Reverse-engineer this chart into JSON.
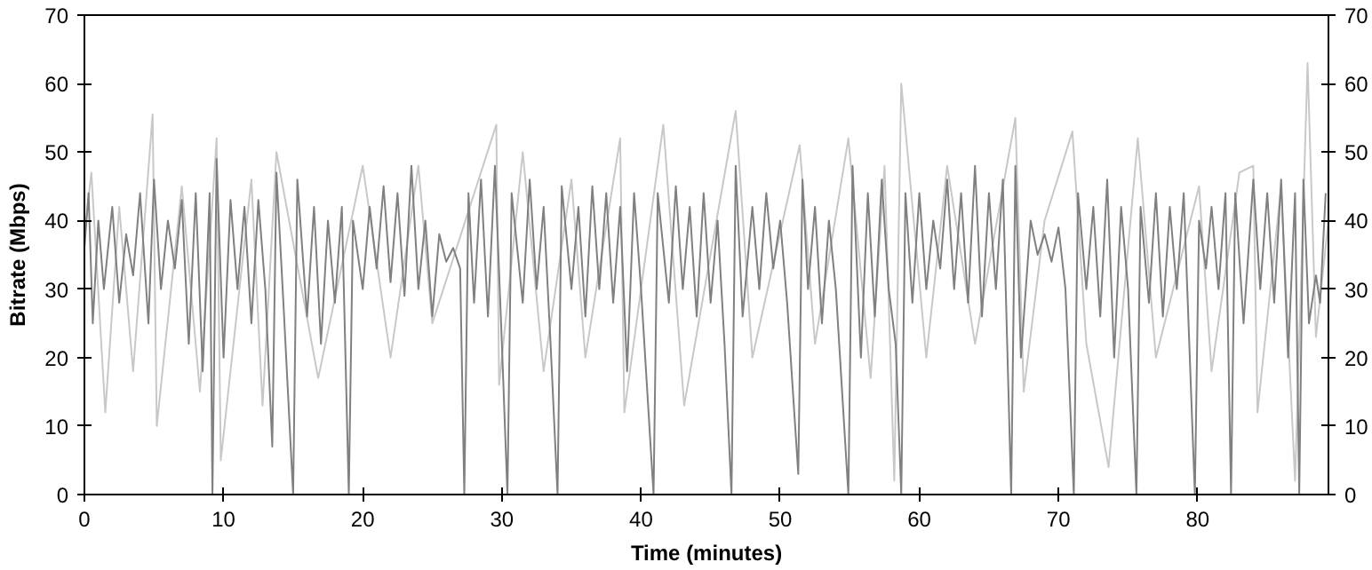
{
  "chart_data": {
    "type": "line",
    "xlabel": "Time (minutes)",
    "ylabel": "Bitrate (Mbps)",
    "xlim": [
      0,
      89.4
    ],
    "xticks": [
      0,
      10,
      20,
      30,
      40,
      50,
      60,
      70,
      80
    ],
    "ylim": [
      0,
      70
    ],
    "yticks": [
      0,
      10,
      20,
      30,
      40,
      50,
      60,
      70
    ],
    "y2lim": [
      0,
      70
    ],
    "y2ticks": [
      0,
      10,
      20,
      30,
      40,
      50,
      60,
      70
    ],
    "grid": false,
    "marker": "none",
    "line_style": "solid",
    "series": [
      {
        "color": "#c8c8c8",
        "x": [
          0,
          0.5,
          1.5,
          2.5,
          3.5,
          4.9,
          5.2,
          7,
          8.3,
          9.5,
          9.8,
          12,
          12.8,
          13.8,
          16.8,
          20,
          22,
          24,
          25,
          29.6,
          29.8,
          31.5,
          33,
          35,
          36,
          38.5,
          38.8,
          41.6,
          43.1,
          46.8,
          48,
          51.4,
          52.5,
          54.9,
          56.5,
          57.5,
          58.2,
          58.7,
          60.5,
          62,
          64,
          66.9,
          67.5,
          69,
          71,
          72,
          73.6,
          75.7,
          77,
          80.1,
          81,
          83,
          84,
          84.3,
          86,
          87,
          87.9,
          88.5,
          89.4
        ],
        "values": [
          38,
          47,
          12,
          42,
          18,
          55.5,
          10,
          45,
          15,
          52,
          5,
          46,
          13,
          50,
          17,
          48,
          20,
          48,
          25,
          54,
          16,
          50,
          18,
          46,
          20,
          52,
          12,
          54,
          13,
          56,
          20,
          51,
          22,
          52,
          17,
          48,
          2,
          60,
          20,
          48,
          22,
          55,
          15,
          40,
          53,
          22,
          4,
          52,
          20,
          45,
          18,
          47,
          48,
          12,
          45,
          2,
          63,
          23,
          40
        ]
      },
      {
        "color": "#808080",
        "x": [
          0,
          0.3,
          0.6,
          1,
          1.4,
          2,
          2.5,
          3,
          3.5,
          4,
          4.6,
          5,
          5.5,
          6,
          6.5,
          7,
          7.5,
          8,
          8.5,
          9,
          9.2,
          9.5,
          10,
          10.5,
          11,
          11.5,
          12,
          12.5,
          13,
          13.5,
          13.8,
          14.3,
          15,
          15.3,
          16,
          16.5,
          17,
          17.5,
          18,
          18.5,
          19,
          19.3,
          20,
          20.5,
          21,
          21.5,
          22,
          22.5,
          23,
          23.5,
          24,
          24.5,
          25,
          25.5,
          26,
          26.5,
          27,
          27.3,
          27.6,
          28,
          28.5,
          29,
          29.5,
          30,
          30.4,
          30.7,
          31.5,
          32,
          32.5,
          33,
          33.5,
          34,
          34.3,
          35,
          35.5,
          36,
          36.5,
          37,
          37.5,
          38,
          38.5,
          39,
          39.5,
          40,
          40.9,
          41.2,
          42,
          42.5,
          43,
          43.5,
          44,
          44.5,
          45,
          45.5,
          46,
          46.5,
          46.8,
          47.3,
          48,
          48.5,
          49,
          49.5,
          50,
          50.5,
          51.3,
          51.6,
          52,
          52.5,
          53,
          53.5,
          54,
          54.9,
          55.2,
          55.8,
          56.3,
          56.8,
          57.3,
          57.8,
          58.3,
          58.7,
          59,
          59.5,
          60,
          60.5,
          61,
          61.5,
          62,
          62.5,
          63,
          63.5,
          64,
          64.5,
          65,
          65.5,
          66,
          66.6,
          66.9,
          67.3,
          68,
          68.5,
          69,
          69.5,
          70,
          70.5,
          71.1,
          71.4,
          72,
          72.5,
          73,
          73.5,
          74,
          74.5,
          75,
          75.6,
          75.9,
          76.5,
          77,
          77.5,
          78,
          78.5,
          79,
          79.8,
          80.1,
          80.6,
          81,
          81.5,
          82,
          82.4,
          82.7,
          83.3,
          84,
          84.5,
          85,
          85.5,
          86,
          86.5,
          87,
          87.3,
          87.6,
          88,
          88.5,
          88.8,
          89.2
        ],
        "values": [
          36,
          44,
          25,
          40,
          30,
          42,
          28,
          38,
          32,
          44,
          25,
          46,
          30,
          40,
          33,
          43,
          22,
          44,
          18,
          44,
          0,
          49,
          20,
          43,
          30,
          42,
          25,
          43,
          30,
          7,
          47,
          28,
          0,
          46,
          26,
          42,
          22,
          40,
          28,
          42,
          0,
          40,
          30,
          42,
          33,
          45,
          31,
          44,
          29,
          48,
          30,
          40,
          26,
          38,
          34,
          36,
          33,
          0,
          44,
          28,
          46,
          26,
          48,
          22,
          0,
          44,
          28,
          46,
          30,
          42,
          22,
          0,
          45,
          30,
          42,
          26,
          45,
          30,
          44,
          28,
          42,
          18,
          44,
          30,
          0,
          44,
          28,
          45,
          30,
          42,
          26,
          44,
          28,
          40,
          22,
          0,
          48,
          26,
          42,
          30,
          44,
          33,
          40,
          28,
          3,
          46,
          30,
          42,
          25,
          40,
          30,
          0,
          48,
          20,
          44,
          26,
          46,
          30,
          22,
          0,
          44,
          28,
          44,
          30,
          40,
          33,
          46,
          30,
          44,
          28,
          48,
          26,
          44,
          30,
          46,
          0,
          48,
          20,
          40,
          35,
          38,
          34,
          39,
          30,
          0,
          44,
          30,
          42,
          26,
          46,
          20,
          42,
          30,
          0,
          42,
          28,
          44,
          26,
          42,
          30,
          44,
          0,
          40,
          33,
          42,
          30,
          44,
          0,
          44,
          25,
          46,
          30,
          44,
          28,
          46,
          20,
          44,
          0,
          46,
          25,
          32,
          28,
          44
        ]
      }
    ]
  }
}
